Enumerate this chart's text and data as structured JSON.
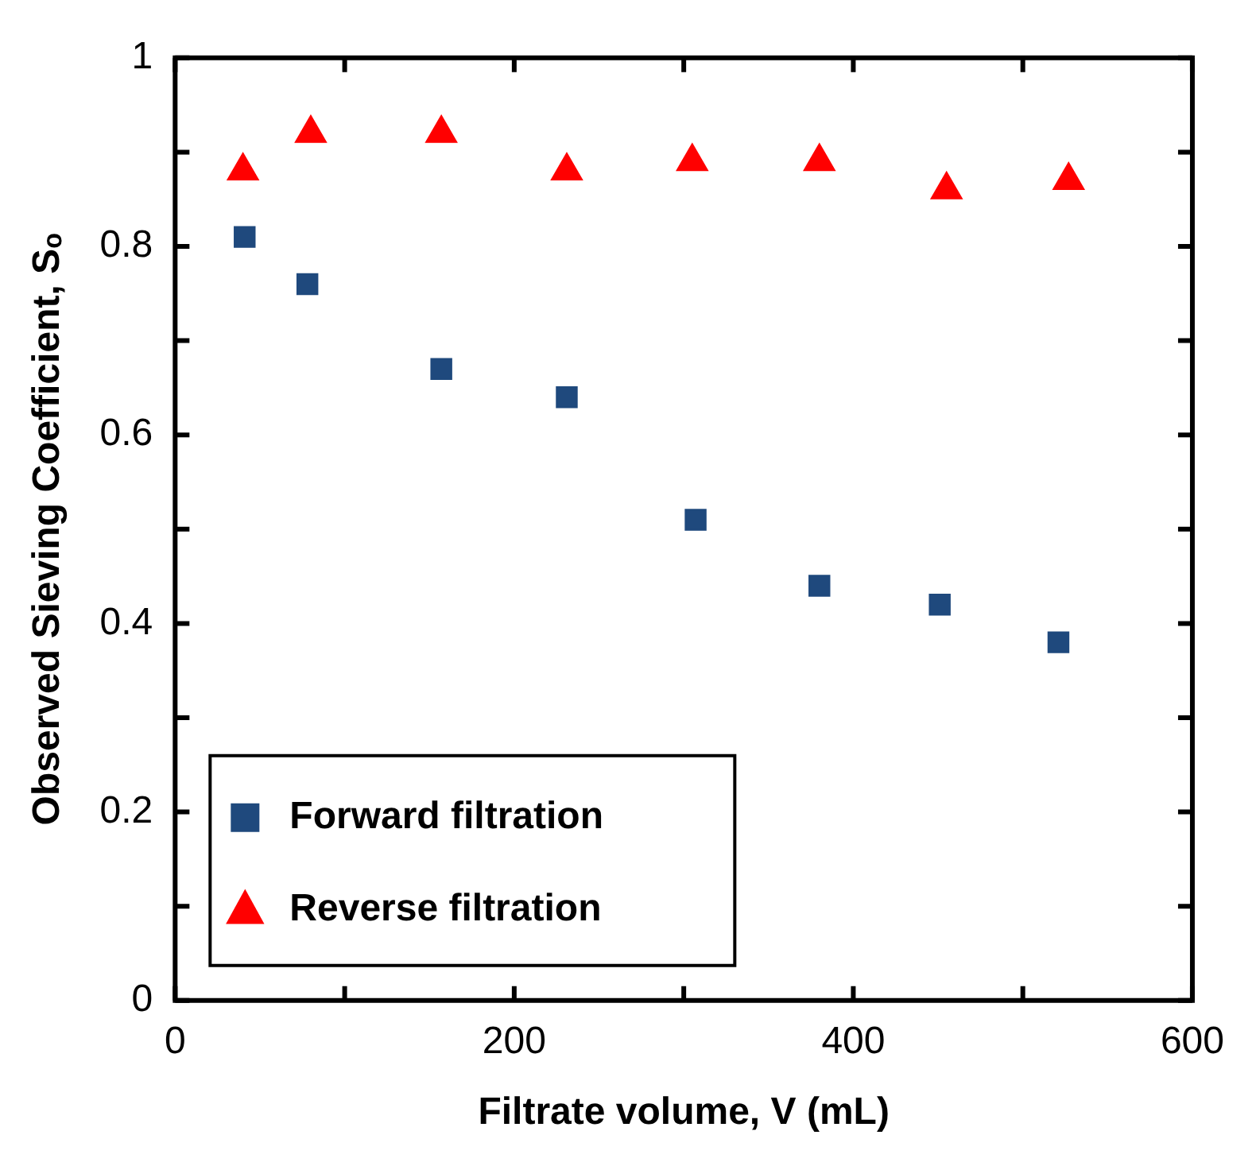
{
  "chart_data": {
    "type": "scatter",
    "xlabel": "Filtrate volume, V (mL)",
    "ylabel": "Observed Sieving Coefficient, Sₒ",
    "series": [
      {
        "name": "Forward filtration",
        "color": "#1f497d",
        "marker": "square",
        "x": [
          41,
          78,
          157,
          231,
          307,
          380,
          451,
          521
        ],
        "values": [
          0.81,
          0.76,
          0.67,
          0.64,
          0.51,
          0.44,
          0.42,
          0.38
        ]
      },
      {
        "name": "Reverse filtration",
        "color": "#ff0000",
        "marker": "triangle",
        "x": [
          40,
          80,
          157,
          231,
          305,
          380,
          455,
          527
        ],
        "values": [
          0.88,
          0.92,
          0.92,
          0.88,
          0.89,
          0.89,
          0.86,
          0.87
        ]
      }
    ],
    "xlim": [
      0,
      600
    ],
    "ylim": [
      0,
      1
    ],
    "xticks": [
      0,
      {
        "value": 100,
        "label": null
      },
      200,
      {
        "value": 300,
        "label": null
      },
      400,
      {
        "value": 500,
        "label": null
      },
      600
    ],
    "yticks": [
      0,
      {
        "value": 0.1,
        "label": null
      },
      0.2,
      {
        "value": 0.3,
        "label": null
      },
      0.4,
      {
        "value": 0.5,
        "label": null
      },
      0.6,
      {
        "value": 0.7,
        "label": null
      },
      0.8,
      {
        "value": 0.9,
        "label": null
      },
      1
    ],
    "grid": false,
    "legend": "bottom left"
  }
}
